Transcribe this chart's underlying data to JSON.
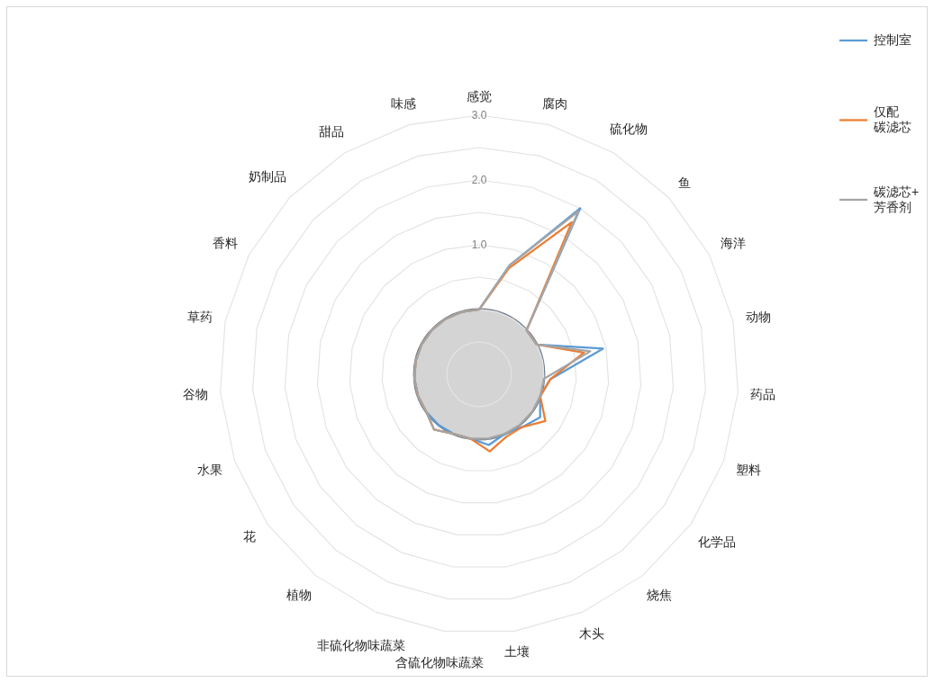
{
  "chart_data": {
    "type": "radar",
    "categories": [
      "感觉",
      "腐肉",
      "硫化物",
      "鱼",
      "海洋",
      "动物",
      "药品",
      "塑料",
      "化学品",
      "烧焦",
      "木头",
      "土壤",
      "含硫化物味蔬菜",
      "非硫化物味蔬菜",
      "植物",
      "花",
      "水果",
      "谷物",
      "草药",
      "香料",
      "奶制品",
      "甜品",
      "味感"
    ],
    "series": [
      {
        "name": "控制室",
        "color": "#5b9bd5",
        "values": [
          0,
          0.75,
          2.0,
          0,
          0,
          0.95,
          0.1,
          0,
          0.15,
          0.05,
          0,
          0.1,
          0,
          0,
          0,
          0,
          0,
          0,
          0,
          0,
          0,
          0,
          0
        ]
      },
      {
        "name": "仅配碳滤芯",
        "color": "#ed7d31",
        "values": [
          0,
          0.7,
          1.75,
          0,
          0,
          0.65,
          0.1,
          0,
          0.25,
          0.05,
          0.05,
          0.2,
          0,
          0,
          0.1,
          0,
          0,
          0,
          0,
          0,
          0,
          0,
          0
        ]
      },
      {
        "name": "碳滤芯+芳香剂",
        "color": "#a5a5a5",
        "values": [
          0,
          0.75,
          1.95,
          0,
          0,
          0.75,
          0,
          0,
          0,
          0,
          0,
          0,
          0,
          0,
          0.1,
          0,
          0,
          0,
          0,
          0,
          0,
          0,
          0
        ]
      }
    ],
    "ylim": [
      -1,
      3
    ],
    "yticks": [
      {
        "value": 1,
        "label": "1.0"
      },
      {
        "value": 2,
        "label": "2.0"
      },
      {
        "value": 3,
        "label": "3.0"
      }
    ],
    "grid": true,
    "legend": "top right"
  }
}
